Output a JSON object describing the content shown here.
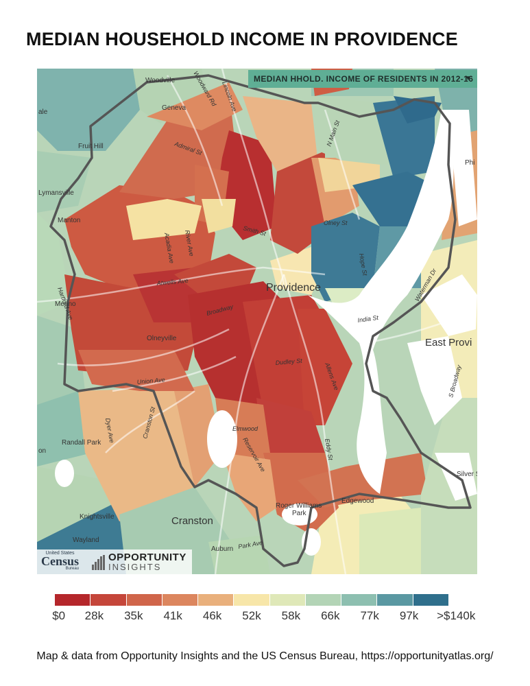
{
  "title": "MEDIAN HOUSEHOLD INCOME IN PROVIDENCE",
  "dropdown": {
    "label": "MEDIAN HHOLD. INCOME OF RESIDENTS IN 2012-16",
    "icon": "caret-down-icon"
  },
  "map_labels": {
    "city": "Providence",
    "east_prov": "East Provi",
    "cranston": "Cranston",
    "places": [
      "Woodville",
      "Geneva",
      "Fruit Hill",
      "Lymansville",
      "Manton",
      "Mount Pleasant",
      "Olneyville",
      "Randall Park",
      "Knightsville",
      "Auburn",
      "Edgewood",
      "Roger Williams Park",
      "Silver S",
      "Phi",
      "Merino",
      "Wayland",
      "ale",
      "on"
    ],
    "streets": [
      "Admiral St",
      "Smith St",
      "Atwells Ave",
      "Broadway",
      "Dudley St",
      "Elmwood",
      "Olney St",
      "Hope St",
      "India St",
      "Waterman Dr",
      "S Broadway",
      "Dyer Ave",
      "Cranston St",
      "Park Ave",
      "Eddy St",
      "Allens Ave",
      "Acadia Ave",
      "River Ave",
      "Reservoir Ave",
      "Union Ave",
      "N Main St",
      "Woodward Rd",
      "Lincoln Ave",
      "Hartford Ave"
    ]
  },
  "logos": {
    "census_top": "United States",
    "census_main": "Census",
    "census_bottom": "Bureau",
    "oi_line1": "OPPORTUNITY",
    "oi_line2": "INSIGHTS"
  },
  "legend": {
    "colors": [
      "#b5272b",
      "#c5463a",
      "#d0654a",
      "#dc865e",
      "#e9b07c",
      "#f7e6a9",
      "#dfe8b8",
      "#b3d4b6",
      "#8dbfb0",
      "#5a98a2",
      "#2f6f8c"
    ],
    "labels": [
      "$0",
      "28k",
      "35k",
      "41k",
      "46k",
      "52k",
      "58k",
      "66k",
      "77k",
      "97k",
      ">$140k"
    ]
  },
  "footer": "Map & data from Opportunity Insights and the US Census Bureau, https://opportunityatlas.org/"
}
